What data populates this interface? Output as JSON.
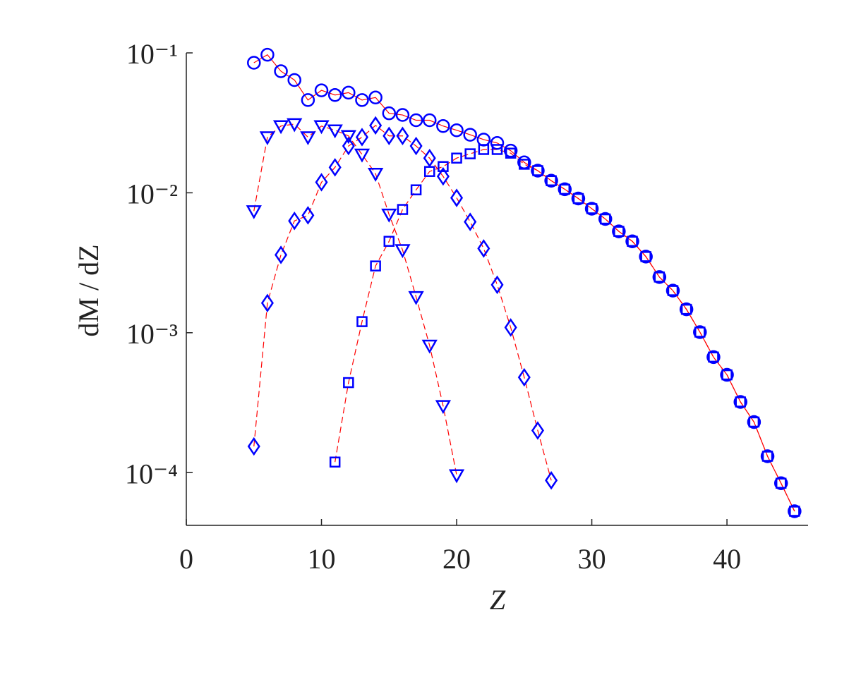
{
  "chart_data": {
    "type": "scatter",
    "xlabel": "Z",
    "ylabel": "dM / dZ",
    "xlim": [
      0,
      46
    ],
    "xticks": [
      0,
      10,
      20,
      30,
      40
    ],
    "ylim": [
      4.2e-05,
      0.1
    ],
    "yscale": "log",
    "yticks": [
      {
        "value": 0.1,
        "label": "10⁻¹"
      },
      {
        "value": 0.01,
        "label": "10⁻²"
      },
      {
        "value": 0.001,
        "label": "10⁻³"
      },
      {
        "value": 0.0001,
        "label": "10⁻⁴"
      }
    ],
    "series": [
      {
        "marker": "circle",
        "color": "#0000ff",
        "line_color": "#ff0000",
        "line_style": "solid",
        "x": [
          5,
          6,
          7,
          8,
          9,
          10,
          11,
          12,
          13,
          14,
          15,
          16,
          17,
          18,
          19,
          20,
          21,
          22,
          23,
          24,
          25,
          26,
          27,
          28,
          29,
          30,
          31,
          32,
          33,
          34,
          35,
          36,
          37,
          38,
          39,
          40,
          41,
          42,
          43,
          44,
          45
        ],
        "values": [
          0.085,
          0.097,
          0.074,
          0.064,
          0.046,
          0.054,
          0.05,
          0.052,
          0.046,
          0.048,
          0.037,
          0.036,
          0.033,
          0.033,
          0.03,
          0.028,
          0.026,
          0.024,
          0.0227,
          0.02,
          0.0165,
          0.0144,
          0.0122,
          0.0106,
          0.0091,
          0.0077,
          0.0065,
          0.0053,
          0.0045,
          0.0035,
          0.0025,
          0.002,
          0.00147,
          0.00101,
          0.00067,
          0.0005,
          0.00032,
          0.00023,
          0.000131,
          8.4e-05,
          5.3e-05
        ]
      },
      {
        "marker": "triangle-down",
        "color": "#0000ff",
        "line_color": "#ff0000",
        "line_style": "dashed",
        "x": [
          5,
          6,
          7,
          8,
          9,
          10,
          11,
          12,
          13,
          14,
          15,
          16,
          17,
          18,
          19,
          20
        ],
        "values": [
          0.0074,
          0.025,
          0.03,
          0.031,
          0.025,
          0.03,
          0.028,
          0.0255,
          0.0188,
          0.0137,
          0.007,
          0.0039,
          0.0018,
          0.00081,
          0.0003,
          9.6e-05
        ]
      },
      {
        "marker": "diamond",
        "color": "#0000ff",
        "line_color": "#ff0000",
        "line_style": "dashed",
        "x": [
          5,
          6,
          7,
          8,
          9,
          10,
          11,
          12,
          13,
          14,
          15,
          16,
          17,
          18,
          19,
          20,
          21,
          22,
          23,
          24,
          25,
          26,
          27
        ],
        "values": [
          0.000154,
          0.00163,
          0.0036,
          0.0063,
          0.0069,
          0.0119,
          0.0152,
          0.0216,
          0.025,
          0.0303,
          0.0255,
          0.0255,
          0.0216,
          0.0177,
          0.0131,
          0.0092,
          0.0062,
          0.004,
          0.0022,
          0.00109,
          0.00048,
          0.0002,
          8.8e-05
        ]
      },
      {
        "marker": "square",
        "color": "#0000ff",
        "line_color": "#ff0000",
        "line_style": "dashed",
        "x": [
          11,
          12,
          13,
          14,
          15,
          16,
          17,
          18,
          19,
          20,
          21,
          22,
          23,
          24,
          25,
          26,
          27,
          28,
          29,
          30,
          31,
          32,
          33,
          34,
          35,
          36,
          37,
          38,
          39,
          40,
          41,
          42,
          43,
          44,
          45
        ],
        "values": [
          0.000119,
          0.00044,
          0.0012,
          0.003,
          0.0045,
          0.0076,
          0.0105,
          0.0142,
          0.0154,
          0.0177,
          0.019,
          0.0204,
          0.0204,
          0.0192,
          0.016,
          0.0144,
          0.0122,
          0.0106,
          0.0091,
          0.0077,
          0.0065,
          0.0053,
          0.0045,
          0.0035,
          0.0025,
          0.002,
          0.00147,
          0.00101,
          0.00067,
          0.0005,
          0.00032,
          0.00023,
          0.000131,
          8.4e-05,
          5.3e-05
        ]
      }
    ]
  }
}
